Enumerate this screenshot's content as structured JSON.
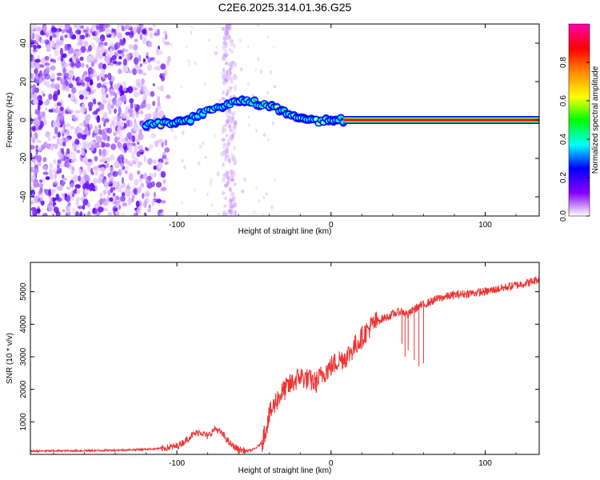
{
  "title": "C2E6.2025.314.01.36.G25",
  "chart_data": [
    {
      "type": "heatmap",
      "name": "spectrogram",
      "xlabel": "Height of straight line (km)",
      "ylabel": "Frequency (Hz)",
      "xlim": [
        -195,
        135
      ],
      "ylim": [
        -50,
        50
      ],
      "xticks": [
        -100,
        0,
        100
      ],
      "xtick_labels": [
        "-100",
        "0",
        "100"
      ],
      "yticks": [
        -40,
        -20,
        0,
        20,
        40
      ],
      "ytick_labels": [
        "-40",
        "-20",
        "0",
        "20",
        "40"
      ],
      "ridge": {
        "x": [
          -120,
          -105,
          -95,
          -85,
          -75,
          -65,
          -58,
          -52,
          -45,
          -38,
          -30,
          -22,
          -15,
          -8,
          0,
          8,
          135
        ],
        "y": [
          -2,
          -2,
          -1,
          3,
          6,
          9,
          11,
          10,
          8,
          7,
          4,
          2,
          0,
          -1,
          0,
          0,
          0
        ]
      },
      "ridge_max_amplitude_from_km": 8,
      "noise_region_x": [
        -195,
        -105
      ],
      "noise_stripe_x": [
        -70,
        -62
      ],
      "colorbar": {
        "label": "Normalized spectral amplitude",
        "range": [
          0,
          1
        ],
        "ticks": [
          0,
          0.2,
          0.4,
          0.6,
          0.8
        ],
        "tick_labels": [
          "0.0",
          "0.2",
          "0.4",
          "0.6",
          "0.8"
        ],
        "colors": [
          "#ffffff",
          "#8800ff",
          "#0000ff",
          "#00ffff",
          "#00ff00",
          "#ffff00",
          "#ff8800",
          "#ff0000",
          "#ff00aa"
        ]
      }
    },
    {
      "type": "line",
      "name": "snr",
      "xlabel": "Height of straight line (km)",
      "ylabel": "SNR (10 * v/v)",
      "xlim": [
        -195,
        135
      ],
      "ylim": [
        0,
        5900
      ],
      "xticks": [
        -100,
        0,
        100
      ],
      "xtick_labels": [
        "-100",
        "0",
        "100"
      ],
      "yticks": [
        1000,
        2000,
        3000,
        4000,
        5000
      ],
      "ytick_labels": [
        "1000",
        "2000",
        "3000",
        "4000",
        "5000"
      ],
      "series": [
        {
          "name": "SNR",
          "color": "#ee3333",
          "x": [
            -195,
            -170,
            -150,
            -130,
            -110,
            -100,
            -95,
            -90,
            -85,
            -80,
            -75,
            -70,
            -65,
            -60,
            -55,
            -50,
            -45,
            -40,
            -35,
            -30,
            -25,
            -20,
            -15,
            -10,
            -5,
            0,
            5,
            10,
            15,
            20,
            25,
            30,
            35,
            40,
            45,
            50,
            55,
            60,
            65,
            70,
            80,
            90,
            100,
            110,
            120,
            130,
            135
          ],
          "y": [
            100,
            110,
            120,
            140,
            180,
            250,
            400,
            600,
            700,
            550,
            800,
            600,
            300,
            150,
            100,
            150,
            350,
            1200,
            1700,
            2000,
            2200,
            2400,
            2300,
            2200,
            2500,
            2700,
            2900,
            3000,
            3300,
            3600,
            3900,
            4100,
            4200,
            4300,
            4400,
            4300,
            4500,
            4600,
            4700,
            4800,
            4900,
            4950,
            5000,
            5100,
            5200,
            5300,
            5400
          ]
        }
      ],
      "dropouts": [
        {
          "x": 46,
          "y": 3400
        },
        {
          "x": 48,
          "y": 3000
        },
        {
          "x": 50,
          "y": 3200
        },
        {
          "x": 54,
          "y": 2900
        },
        {
          "x": 57,
          "y": 2700
        },
        {
          "x": 60,
          "y": 2800
        }
      ]
    }
  ]
}
